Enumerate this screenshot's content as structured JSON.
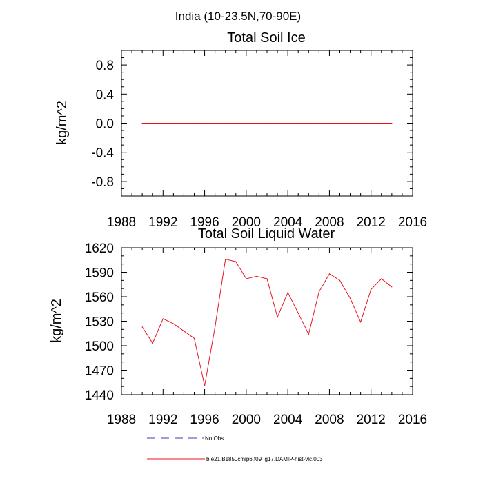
{
  "figure": {
    "title": "India (10-23.5N,70-90E)"
  },
  "chart_data": [
    {
      "type": "line",
      "title": "Total Soil Ice",
      "xlabel": "",
      "ylabel": "kg/m^2",
      "xlim": [
        1988,
        2016
      ],
      "ylim": [
        -1.0,
        1.0
      ],
      "xticks": [
        1988,
        1992,
        1996,
        2000,
        2004,
        2008,
        2012,
        2016
      ],
      "yticks": [
        -0.8,
        -0.4,
        0.0,
        0.4,
        0.8
      ],
      "ytick_labels": [
        "-0.8",
        "-0.4",
        "0.0",
        "0.4",
        "0.8"
      ],
      "series": [
        {
          "name": "b.e21.B1850cmip6.f09_g17.DAMIP-hist-vlc.003",
          "color": "#e8141c",
          "x": [
            1990,
            1991,
            1992,
            1993,
            1994,
            1995,
            1996,
            1997,
            1998,
            1999,
            2000,
            2001,
            2002,
            2003,
            2004,
            2005,
            2006,
            2007,
            2008,
            2009,
            2010,
            2011,
            2012,
            2013,
            2014
          ],
          "y": [
            0,
            0,
            0,
            0,
            0,
            0,
            0,
            0,
            0,
            0,
            0,
            0,
            0,
            0,
            0,
            0,
            0,
            0,
            0,
            0,
            0,
            0,
            0,
            0,
            0
          ]
        }
      ]
    },
    {
      "type": "line",
      "title": "Total Soil Liquid Water",
      "xlabel": "",
      "ylabel": "kg/m^2",
      "xlim": [
        1988,
        2016
      ],
      "ylim": [
        1440,
        1620
      ],
      "xticks": [
        1988,
        1992,
        1996,
        2000,
        2004,
        2008,
        2012,
        2016
      ],
      "yticks": [
        1440,
        1470,
        1500,
        1530,
        1560,
        1590,
        1620
      ],
      "ytick_labels": [
        "1440",
        "1470",
        "1500",
        "1530",
        "1560",
        "1590",
        "1620"
      ],
      "series": [
        {
          "name": "b.e21.B1850cmip6.f09_g17.DAMIP-hist-vlc.003",
          "color": "#e8141c",
          "x": [
            1990,
            1991,
            1992,
            1993,
            1994,
            1995,
            1996,
            1997,
            1998,
            1999,
            2000,
            2001,
            2002,
            2003,
            2004,
            2005,
            2006,
            2007,
            2008,
            2009,
            2010,
            2011,
            2012,
            2013,
            2014
          ],
          "y": [
            1523,
            1503,
            1533,
            1527,
            1518,
            1509,
            1451,
            1523,
            1606,
            1603,
            1582,
            1585,
            1582,
            1535,
            1565,
            1540,
            1514,
            1566,
            1588,
            1580,
            1558,
            1529,
            1569,
            1582,
            1572
          ]
        }
      ]
    }
  ],
  "legend": {
    "position": "bottom",
    "items": [
      {
        "label": "No Obs",
        "style": "dashed",
        "color": "#3c3cb4"
      },
      {
        "label": "b.e21.B1850cmip6.f09_g17.DAMIP-hist-vlc.003",
        "style": "solid",
        "color": "#e8141c"
      }
    ]
  }
}
